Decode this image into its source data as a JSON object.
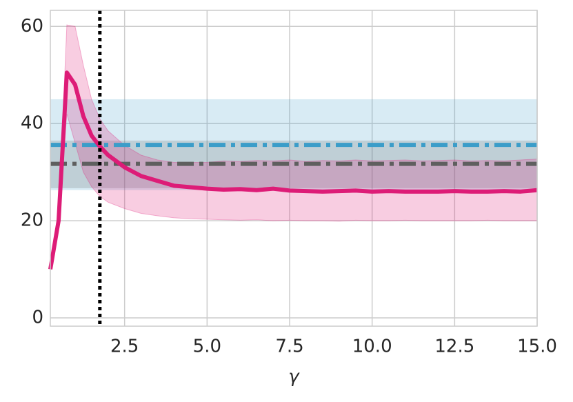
{
  "chart_data": {
    "type": "line",
    "x_label": "γ",
    "x": [
      0.25,
      0.5,
      0.75,
      1,
      1.25,
      1.5,
      1.75,
      2,
      2.5,
      3,
      3.5,
      4,
      4.5,
      5,
      5.5,
      6,
      6.5,
      7,
      7.5,
      8,
      8.5,
      9,
      9.5,
      10,
      10.5,
      11,
      11.5,
      12,
      12.5,
      13,
      13.5,
      14,
      14.5,
      15
    ],
    "series": [
      {
        "color": "#dd1c77",
        "values": [
          10,
          20,
          50.5,
          48,
          41.5,
          37.5,
          35.3,
          33.5,
          31,
          29.2,
          28.2,
          27.2,
          26.9,
          26.6,
          26.4,
          26.5,
          26.3,
          26.6,
          26.2,
          26.1,
          26,
          26.1,
          26.2,
          26,
          26.1,
          26,
          26,
          26,
          26.1,
          26,
          26,
          26.1,
          26,
          26.3
        ],
        "upper": [
          10,
          20,
          60.3,
          60,
          52,
          45,
          41,
          38.5,
          35.5,
          33.5,
          32.5,
          32,
          32,
          32,
          32.3,
          32.2,
          32.4,
          32.3,
          32.5,
          32.2,
          32.4,
          32.3,
          32.5,
          32.3,
          32.4,
          32.5,
          32.3,
          32.4,
          32.5,
          32.3,
          32.4,
          32.3,
          32.5,
          32.7
        ],
        "lower": [
          10,
          20,
          42,
          36,
          30,
          27,
          25,
          23.8,
          22.5,
          21.5,
          21,
          20.6,
          20.4,
          20.3,
          20.2,
          20.1,
          20.2,
          20,
          20.1,
          20,
          20,
          19.9,
          20.1,
          20,
          20,
          20.1,
          20,
          20,
          20,
          20,
          20.1,
          20,
          20,
          20
        ]
      }
    ],
    "hlines": [
      {
        "value": 35.6,
        "lower": 26.3,
        "upper": 45,
        "color": "#3b9dc9"
      },
      {
        "value": 31.7,
        "lower": 26.7,
        "upper": 36.5,
        "color": "#5f5f5f"
      }
    ],
    "vline": 1.75,
    "xlim": [
      0.25,
      15
    ],
    "ylim": [
      -1.7,
      63.3
    ],
    "xticks": [
      {
        "value": 2.5,
        "label": "2.5"
      },
      {
        "value": 5,
        "label": "5.0"
      },
      {
        "value": 7.5,
        "label": "7.5"
      },
      {
        "value": 10,
        "label": "10.0"
      },
      {
        "value": 12.5,
        "label": "12.5"
      },
      {
        "value": 15,
        "label": "15.0"
      }
    ],
    "yticks": [
      0,
      20,
      40,
      60
    ],
    "grid": true
  }
}
